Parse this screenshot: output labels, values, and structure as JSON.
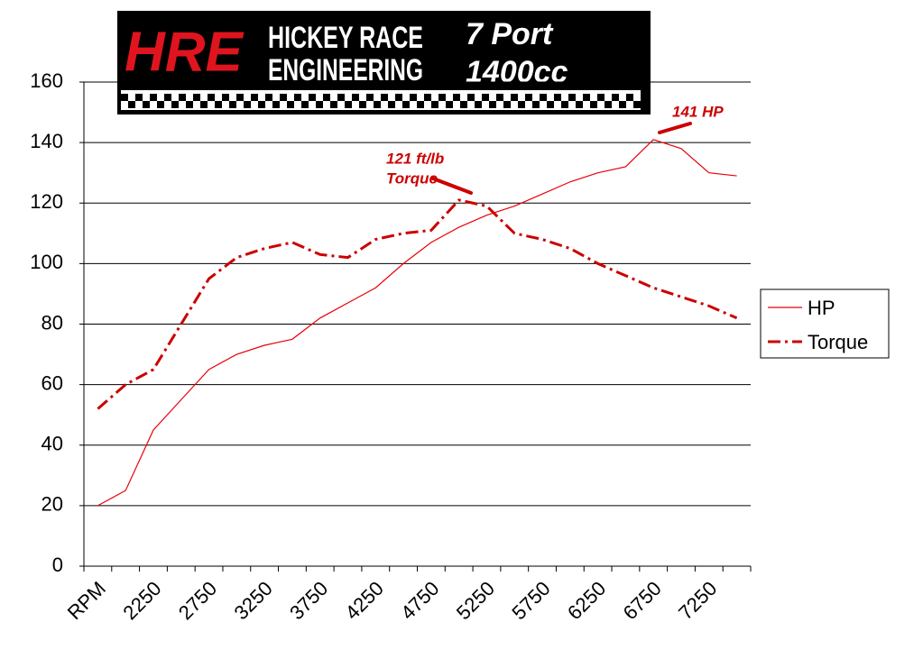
{
  "chart_data": {
    "type": "line",
    "logo": {
      "mark": "HRE",
      "lines": [
        "HICKEY RACE",
        "ENGINEERING"
      ]
    },
    "title_lines": [
      "7 Port",
      "1400cc"
    ],
    "categories": [
      "RPM",
      null,
      "2250",
      null,
      "2750",
      null,
      "3250",
      null,
      "3750",
      null,
      "4250",
      null,
      "4750",
      null,
      "5250",
      null,
      "5750",
      null,
      "6250",
      null,
      "6750",
      null,
      "7250",
      null
    ],
    "series": [
      {
        "name": "HP",
        "color": "#e8000b",
        "dash": "solid",
        "values": [
          20,
          25,
          45,
          55,
          65,
          70,
          73,
          75,
          82,
          87,
          92,
          100,
          107,
          112,
          116,
          119,
          123,
          127,
          130,
          132,
          141,
          138,
          130,
          129
        ]
      },
      {
        "name": "Torque",
        "color": "#cc0000",
        "dash": "dash-dot",
        "values": [
          52,
          60,
          65,
          80,
          95,
          102,
          105,
          107,
          103,
          102,
          108,
          110,
          111,
          121,
          119,
          110,
          108,
          105,
          100,
          96,
          92,
          89,
          86,
          82
        ]
      }
    ],
    "annotations": [
      {
        "lines": [
          "121 ft/lb",
          "Torque"
        ]
      },
      {
        "lines": [
          "141 HP"
        ]
      }
    ],
    "ylim": [
      0,
      160
    ],
    "yticks": [
      0,
      20,
      40,
      60,
      80,
      100,
      120,
      140,
      160
    ],
    "grid": true,
    "legend": "right"
  }
}
